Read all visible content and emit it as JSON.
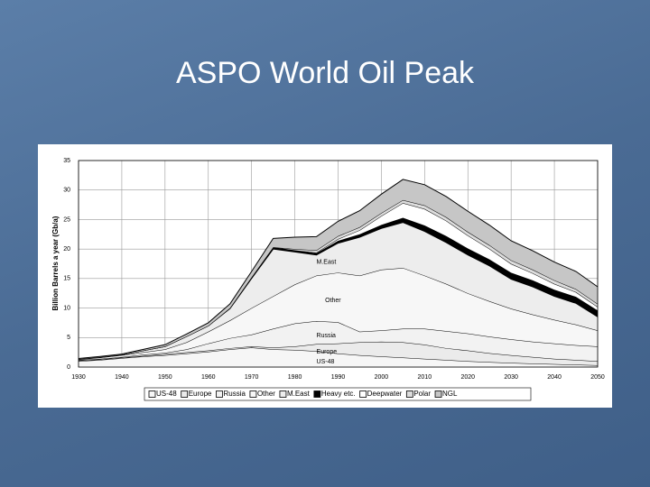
{
  "title": "ASPO World Oil Peak",
  "chart_data": {
    "type": "stacked-area",
    "y_label": "Billion Barrels a year (Gb/a)",
    "x": [
      1930,
      1935,
      1940,
      1945,
      1950,
      1955,
      1960,
      1965,
      1970,
      1975,
      1980,
      1985,
      1990,
      1995,
      2000,
      2005,
      2010,
      2015,
      2020,
      2025,
      2030,
      2035,
      2040,
      2045,
      2050
    ],
    "xlim": [
      1930,
      2050
    ],
    "xticks": [
      1930,
      1940,
      1950,
      1960,
      1970,
      1980,
      1990,
      2000,
      2010,
      2020,
      2030,
      2040,
      2050
    ],
    "ylim": [
      0,
      35
    ],
    "yticks": [
      0,
      5,
      10,
      15,
      20,
      25,
      30,
      35
    ],
    "grid": true,
    "legend": "bottom",
    "annotations": [
      "M.East",
      "Other",
      "Russia",
      "Europe",
      "US-48"
    ],
    "series": [
      {
        "name": "US-48",
        "color": "#f6f6f6",
        "values": [
          1.0,
          1.2,
          1.5,
          1.8,
          2.0,
          2.3,
          2.6,
          3.0,
          3.3,
          3.0,
          2.9,
          2.7,
          2.3,
          2.0,
          1.8,
          1.6,
          1.4,
          1.2,
          1.0,
          0.85,
          0.7,
          0.6,
          0.5,
          0.4,
          0.3
        ]
      },
      {
        "name": "Europe",
        "color": "#ebebeb",
        "values": [
          0.1,
          0.1,
          0.1,
          0.1,
          0.2,
          0.2,
          0.2,
          0.2,
          0.2,
          0.3,
          0.6,
          1.2,
          1.7,
          2.2,
          2.5,
          2.6,
          2.4,
          2.0,
          1.8,
          1.5,
          1.3,
          1.1,
          0.9,
          0.8,
          0.7
        ]
      },
      {
        "name": "Russia",
        "color": "#f2f2f2",
        "values": [
          0.1,
          0.1,
          0.1,
          0.2,
          0.2,
          0.5,
          1.2,
          1.7,
          2.0,
          3.2,
          3.9,
          3.9,
          3.6,
          1.8,
          1.9,
          2.3,
          2.7,
          2.9,
          2.9,
          2.8,
          2.7,
          2.6,
          2.6,
          2.5,
          2.5
        ]
      },
      {
        "name": "Other",
        "color": "#f7f7f7",
        "values": [
          0.1,
          0.2,
          0.3,
          0.4,
          0.6,
          1.2,
          2.0,
          3.0,
          4.5,
          5.5,
          6.6,
          7.7,
          8.4,
          9.5,
          10.3,
          10.3,
          9.0,
          8.0,
          6.8,
          6.0,
          5.2,
          4.6,
          4.0,
          3.5,
          2.7
        ]
      },
      {
        "name": "M.East",
        "color": "#ededed",
        "values": [
          0.05,
          0.1,
          0.1,
          0.3,
          0.5,
          1.0,
          1.0,
          2.0,
          5.0,
          8.0,
          5.5,
          3.5,
          5.0,
          6.5,
          7.0,
          7.7,
          7.5,
          7.0,
          6.5,
          6.0,
          5.0,
          4.7,
          4.0,
          3.6,
          2.3
        ]
      },
      {
        "name": "Heavy etc.",
        "color": "#000000",
        "values": [
          0,
          0,
          0,
          0,
          0,
          0,
          0,
          0.1,
          0.2,
          0.3,
          0.3,
          0.3,
          0.4,
          0.5,
          0.6,
          0.8,
          1.0,
          1.1,
          1.1,
          1.1,
          1.1,
          1.1,
          1.1,
          1.1,
          1.1
        ]
      },
      {
        "name": "Deepwater",
        "color": "#ffffff",
        "values": [
          0,
          0,
          0,
          0,
          0,
          0,
          0,
          0,
          0,
          0,
          0,
          0.1,
          0.3,
          0.7,
          1.5,
          2.5,
          2.8,
          2.6,
          2.2,
          1.8,
          1.5,
          1.2,
          1.0,
          0.8,
          0.6
        ]
      },
      {
        "name": "Polar",
        "color": "#dddddd",
        "values": [
          0,
          0,
          0,
          0,
          0,
          0,
          0,
          0,
          0,
          0,
          0.2,
          0.4,
          0.5,
          0.5,
          0.5,
          0.5,
          0.6,
          0.6,
          0.6,
          0.6,
          0.6,
          0.6,
          0.6,
          0.5,
          0.5
        ]
      },
      {
        "name": "NGL",
        "color": "#c6c6c6",
        "values": [
          0.1,
          0.1,
          0.1,
          0.2,
          0.3,
          0.4,
          0.5,
          0.7,
          1.0,
          1.5,
          2.0,
          2.3,
          2.5,
          2.8,
          3.2,
          3.5,
          3.5,
          3.5,
          3.5,
          3.4,
          3.3,
          3.2,
          3.1,
          3.0,
          2.9
        ]
      }
    ]
  }
}
